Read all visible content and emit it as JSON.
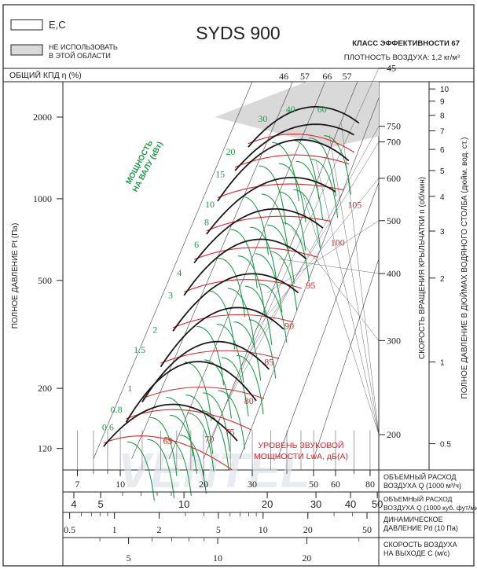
{
  "header": {
    "title": "SYDS 900",
    "legend_white_label": "E,C",
    "legend_gray_label": [
      "НЕ ИСПОЛЬЗОВАТЬ",
      "В ЭТОЙ ОБЛАСТИ"
    ],
    "efficiency_class": "КЛАСС ЭФФЕКТИВНОСТИ 67",
    "air_density": "ПЛОТНОСТЬ ВОЗДУХА: 1,2 кг/м³",
    "efficiency_label": "ОБЩИЙ КПД η (%)"
  },
  "chart_data": {
    "type": "line",
    "title": "SYDS 900",
    "ylabel_left": "ПОЛНОЕ ДАВЛЕНИЕ Pt (Па)",
    "ylabel_right_rpm": "СКОРОСТЬ ВРАЩЕНИЯ КРЫЛЬЧАТКИ n (об/мин)",
    "ylabel_right_mm": "ПОЛНОЕ ДАВЛЕНИЕ В ДЮЙМАХ ВОДЯНОГО СТОЛБА (дюйм. вод. ст.)",
    "y_scale": "log",
    "ylim_pa": [
      100,
      3000
    ],
    "y_ticks_pa": [
      2000,
      1000,
      500,
      200,
      120
    ],
    "rpm_ticks": [
      45,
      750,
      700,
      600,
      500,
      400,
      300,
      200
    ],
    "rpm_ticks_pos_pa": [
      3030,
      1850,
      1620,
      1190,
      830,
      530,
      300,
      135
    ],
    "inch_ticks": [
      10,
      9,
      8,
      7,
      6,
      5,
      4,
      3,
      2,
      1,
      0.5
    ],
    "inch_ticks_pos_pa": [
      2540,
      2290,
      2030,
      1780,
      1520,
      1270,
      1020,
      760,
      510,
      250,
      125
    ],
    "efficiency_top_labels": [
      "46",
      "57",
      "66",
      "57"
    ],
    "efficiency_top_x_m3h": [
      39,
      46.5,
      56,
      66
    ],
    "power_label": "МОЩНОСТЬ НА ВАЛУ (кВт)",
    "power_labels_kw": [
      {
        "kw": "0.6",
        "q": 9.6,
        "p": 140
      },
      {
        "kw": "0.8",
        "q": 10.3,
        "p": 163
      },
      {
        "kw": "1",
        "q": 11.2,
        "p": 195
      },
      {
        "kw": "1.5",
        "q": 12.5,
        "p": 270
      },
      {
        "kw": "2",
        "q": 13.8,
        "p": 320
      },
      {
        "kw": "3",
        "q": 15.7,
        "p": 430
      },
      {
        "kw": "4",
        "q": 16.9,
        "p": 520
      },
      {
        "kw": "6",
        "q": 19.5,
        "p": 660
      },
      {
        "kw": "8",
        "q": 21.2,
        "p": 800
      },
      {
        "kw": "10",
        "q": 22.2,
        "p": 930
      },
      {
        "kw": "15",
        "q": 24.2,
        "p": 1200
      },
      {
        "kw": "20",
        "q": 26.4,
        "p": 1450
      },
      {
        "kw": "30",
        "q": 34.5,
        "p": 1920
      },
      {
        "kw": "40",
        "q": 43.5,
        "p": 2080
      },
      {
        "kw": "60",
        "q": 56.5,
        "p": 2080
      }
    ],
    "sound_label": "УРОВЕНЬ ЗВУКОВОЙ МОЩНОСТИ LwA, дБ(А)",
    "sound_labels_db": [
      {
        "db": "65",
        "q": 14.0,
        "p": 128
      },
      {
        "db": "70",
        "q": 19.8,
        "p": 130
      },
      {
        "db": "75",
        "q": 23.5,
        "p": 138
      },
      {
        "db": "80",
        "q": 27.5,
        "p": 180
      },
      {
        "db": "85",
        "q": 32.5,
        "p": 250
      },
      {
        "db": "90",
        "q": 38.5,
        "p": 340
      },
      {
        "db": "95",
        "q": 46.0,
        "p": 480
      },
      {
        "db": "100",
        "q": 56.5,
        "p": 690
      },
      {
        "db": "105",
        "q": 65.0,
        "p": 950
      }
    ],
    "fan_curves": [
      {
        "rpm": 200,
        "q_start": 8.7,
        "p_start": 122,
        "q_peak": 21,
        "p_peak": 158,
        "q_end": 26.5,
        "p_end": 128
      },
      {
        "rpm": 300,
        "q_start": 10.5,
        "p_start": 150,
        "q_peak": 24.5,
        "p_peak": 230,
        "q_end": 31,
        "p_end": 180
      },
      {
        "rpm": 400,
        "q_start": 12,
        "p_start": 178,
        "q_peak": 27,
        "p_peak": 285,
        "q_end": 34.5,
        "p_end": 235
      },
      {
        "rpm": 500,
        "q_start": 14,
        "p_start": 240,
        "q_peak": 31,
        "p_peak": 385,
        "q_end": 39,
        "p_end": 330
      },
      {
        "rpm": 600,
        "q_start": 15.5,
        "p_start": 325,
        "q_peak": 34,
        "p_peak": 520,
        "q_end": 44,
        "p_end": 450
      },
      {
        "rpm": 650,
        "q_start": 17,
        "p_start": 440,
        "q_peak": 37.5,
        "p_peak": 690,
        "q_end": 47,
        "p_end": 600
      },
      {
        "rpm": 700,
        "q_start": 18.5,
        "p_start": 580,
        "q_peak": 41.5,
        "p_peak": 900,
        "q_end": 54,
        "p_end": 780
      },
      {
        "rpm": 750,
        "q_start": 20.5,
        "p_start": 740,
        "q_peak": 45.5,
        "p_peak": 1190,
        "q_end": 60,
        "p_end": 1060
      },
      {
        "rpm": 800,
        "q_start": 22.5,
        "p_start": 980,
        "q_peak": 51,
        "p_peak": 1620,
        "q_end": 67,
        "p_end": 1380
      },
      {
        "rpm": 850,
        "q_start": 26,
        "p_start": 1270,
        "q_peak": 57,
        "p_peak": 1860,
        "q_end": 70,
        "p_end": 1720
      },
      {
        "rpm": 900,
        "q_start": 29,
        "p_start": 1550,
        "q_peak": 63,
        "p_peak": 2080,
        "q_end": 73,
        "p_end": 1900
      }
    ],
    "x_axes": [
      {
        "label": "ОБЪЕМНЫЙ РАСХОД ВОЗДУХА Q (1000 м³/ч)",
        "ticks": [
          "7",
          "10",
          "20",
          "30",
          "50",
          "60",
          "80"
        ],
        "values": [
          7,
          10,
          20,
          30,
          50,
          60,
          80
        ]
      },
      {
        "label": "ОБЪЕМНЫЙ РАСХОД ВОЗДУХА Q (1000 куб. фут/мин)",
        "ticks": [
          "4",
          "5",
          "10",
          "20",
          "30",
          "40",
          "50"
        ],
        "values": [
          4,
          5,
          10,
          20,
          30,
          40,
          50
        ]
      },
      {
        "label": "ДИНАМИЧЕСКОЕ ДАВЛЕНИЕ Pd (10 Па)",
        "ticks": [
          "0.5",
          "1",
          "2",
          "5",
          "10",
          "20",
          "50"
        ],
        "values": [
          0.5,
          1,
          2,
          5,
          10,
          20,
          50
        ]
      },
      {
        "label": "СКОРОСТЬ ВОЗДУХА НА ВЫХОДЕ C (м/с)",
        "ticks": [
          "5",
          "10",
          "20"
        ],
        "values": [
          5,
          10,
          20
        ]
      }
    ]
  },
  "colors": {
    "curve": "#1a1a1a",
    "power_curve": "#1e9b4a",
    "sound_curve": "#e0242b",
    "gray_zone": "#d9d9d9",
    "grid": "#444444"
  },
  "watermark": "VENTEL"
}
